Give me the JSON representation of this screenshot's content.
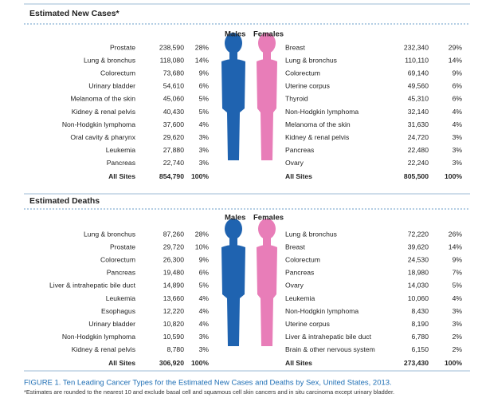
{
  "sections": [
    {
      "title": "Estimated New Cases*",
      "males_label": "Males",
      "females_label": "Females",
      "males": [
        [
          "Prostate",
          "238,590",
          "28%"
        ],
        [
          "Lung & bronchus",
          "118,080",
          "14%"
        ],
        [
          "Colorectum",
          "73,680",
          "9%"
        ],
        [
          "Urinary bladder",
          "54,610",
          "6%"
        ],
        [
          "Melanoma of the skin",
          "45,060",
          "5%"
        ],
        [
          "Kidney & renal pelvis",
          "40,430",
          "5%"
        ],
        [
          "Non-Hodgkin lymphoma",
          "37,600",
          "4%"
        ],
        [
          "Oral cavity & pharynx",
          "29,620",
          "3%"
        ],
        [
          "Leukemia",
          "27,880",
          "3%"
        ],
        [
          "Pancreas",
          "22,740",
          "3%"
        ]
      ],
      "males_total": [
        "All Sites",
        "854,790",
        "100%"
      ],
      "females": [
        [
          "Breast",
          "232,340",
          "29%"
        ],
        [
          "Lung & bronchus",
          "110,110",
          "14%"
        ],
        [
          "Colorectum",
          "69,140",
          "9%"
        ],
        [
          "Uterine corpus",
          "49,560",
          "6%"
        ],
        [
          "Thyroid",
          "45,310",
          "6%"
        ],
        [
          "Non-Hodgkin lymphoma",
          "32,140",
          "4%"
        ],
        [
          "Melanoma of the skin",
          "31,630",
          "4%"
        ],
        [
          "Kidney & renal pelvis",
          "24,720",
          "3%"
        ],
        [
          "Pancreas",
          "22,480",
          "3%"
        ],
        [
          "Ovary",
          "22,240",
          "3%"
        ]
      ],
      "females_total": [
        "All Sites",
        "805,500",
        "100%"
      ]
    },
    {
      "title": "Estimated Deaths",
      "males_label": "Males",
      "females_label": "Females",
      "males": [
        [
          "Lung & bronchus",
          "87,260",
          "28%"
        ],
        [
          "Prostate",
          "29,720",
          "10%"
        ],
        [
          "Colorectum",
          "26,300",
          "9%"
        ],
        [
          "Pancreas",
          "19,480",
          "6%"
        ],
        [
          "Liver & intrahepatic bile duct",
          "14,890",
          "5%"
        ],
        [
          "Leukemia",
          "13,660",
          "4%"
        ],
        [
          "Esophagus",
          "12,220",
          "4%"
        ],
        [
          "Urinary bladder",
          "10,820",
          "4%"
        ],
        [
          "Non-Hodgkin lymphoma",
          "10,590",
          "3%"
        ],
        [
          "Kidney & renal pelvis",
          "8,780",
          "3%"
        ]
      ],
      "males_total": [
        "All Sites",
        "306,920",
        "100%"
      ],
      "females": [
        [
          "Lung & bronchus",
          "72,220",
          "26%"
        ],
        [
          "Breast",
          "39,620",
          "14%"
        ],
        [
          "Colorectum",
          "24,530",
          "9%"
        ],
        [
          "Pancreas",
          "18,980",
          "7%"
        ],
        [
          "Ovary",
          "14,030",
          "5%"
        ],
        [
          "Leukemia",
          "10,060",
          "4%"
        ],
        [
          "Non-Hodgkin lymphoma",
          "8,430",
          "3%"
        ],
        [
          "Uterine corpus",
          "8,190",
          "3%"
        ],
        [
          "Liver & intrahepatic bile duct",
          "6,780",
          "2%"
        ],
        [
          "Brain & other nervous system",
          "6,150",
          "2%"
        ]
      ],
      "females_total": [
        "All Sites",
        "273,430",
        "100%"
      ]
    }
  ],
  "caption": "FIGURE 1. Ten Leading Cancer Types for the Estimated New Cases and Deaths by Sex, United States, 2013.",
  "footnote": "*Estimates are rounded to the nearest 10 and exclude basal cell and squamous cell skin cancers and in situ carcinoma except urinary bladder."
}
